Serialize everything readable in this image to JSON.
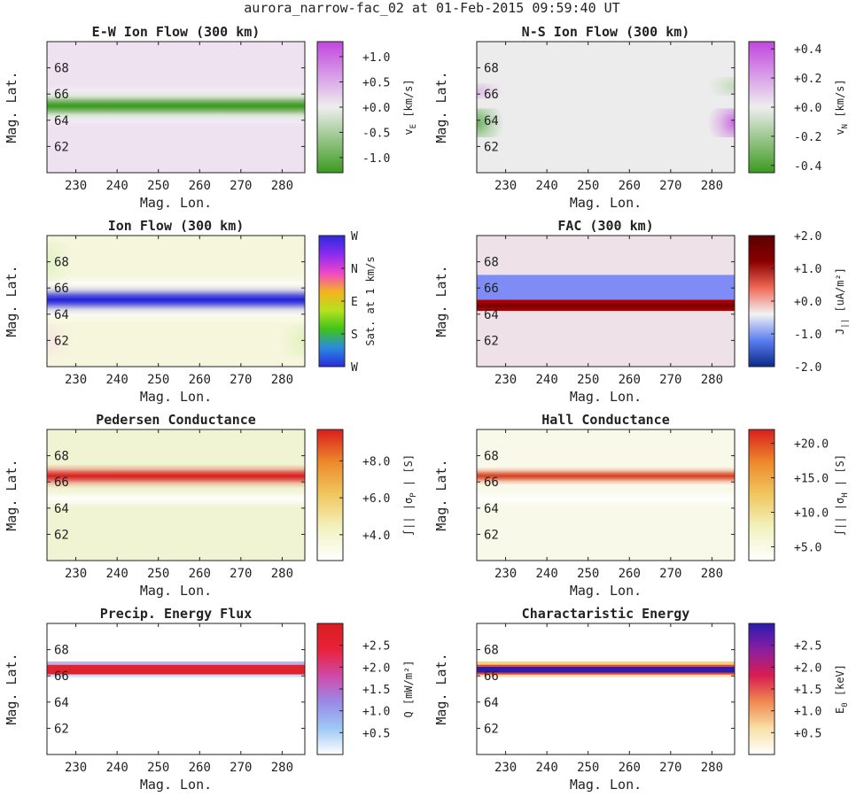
{
  "figure": {
    "title": "aurora_narrow-fac_02 at 01-Feb-2015 09:59:40 UT"
  },
  "colors": {
    "frame": "#222222",
    "green": "#3b9a1e",
    "purple": "#c146de",
    "neutral": "#eeeeee",
    "blue_ion": "#1f1fdc",
    "fac_red": "#7a0000",
    "fac_blue": "#7f8cf5",
    "fac_bg": "#eee2e8",
    "cond_red": "#d81e1e",
    "cond_bg": "#f1f4d2",
    "precip_red": "#e0222e",
    "char_blue": "#2a1cb0"
  },
  "chart_data": [
    {
      "id": "ew",
      "type": "heatmap",
      "title": "E-W Ion Flow (300 km)",
      "xlabel": "",
      "ylabel": "Mag. Lat.",
      "xlim": [
        223,
        285.5
      ],
      "ylim": [
        60,
        70
      ],
      "xticks": [
        "230",
        "240",
        "250",
        "260",
        "270",
        "280"
      ],
      "xtick_values": [
        230,
        240,
        250,
        260,
        270,
        280
      ],
      "yticks": [
        "62",
        "64",
        "66",
        "68"
      ],
      "ytick_values": [
        62,
        64,
        66,
        68
      ],
      "colorbar": {
        "label_main": "v",
        "label_sub": "E",
        "label_unit": "[km/s]",
        "range": [
          -1.3,
          1.3
        ],
        "stops": [
          "#3b9a1e",
          "#eeeeee",
          "#c146de"
        ],
        "ticks": [
          "+1.0",
          "+0.5",
          "+0.0",
          "-0.5",
          "-1.0"
        ],
        "tick_values": [
          1.0,
          0.5,
          0.0,
          -0.5,
          -1.0
        ]
      },
      "field": {
        "background": "#eee2f0",
        "bands": [
          {
            "lat": 65.1,
            "width": 0.55,
            "color": "#3b9a1e",
            "strength": 1.0
          },
          {
            "lat": 66.0,
            "width": 0.35,
            "color": "#ffffff",
            "strength": 0.5
          },
          {
            "lat": 64.2,
            "width": 0.35,
            "color": "#ffffff",
            "strength": 0.5
          }
        ]
      }
    },
    {
      "id": "ns",
      "type": "heatmap",
      "title": "N-S Ion Flow (300 km)",
      "xlabel": "",
      "ylabel": "Mag. Lat.",
      "xlim": [
        223,
        285.5
      ],
      "ylim": [
        60,
        70
      ],
      "xticks": [
        "230",
        "240",
        "250",
        "260",
        "270",
        "280"
      ],
      "xtick_values": [
        230,
        240,
        250,
        260,
        270,
        280
      ],
      "yticks": [
        "62",
        "64",
        "66",
        "68"
      ],
      "ytick_values": [
        62,
        64,
        66,
        68
      ],
      "colorbar": {
        "label_main": "v",
        "label_sub": "N",
        "label_unit": "[km/s]",
        "range": [
          -0.45,
          0.45
        ],
        "stops": [
          "#3b9a1e",
          "#eeeeee",
          "#c146de"
        ],
        "ticks": [
          "+0.4",
          "+0.2",
          "+0.0",
          "-0.2",
          "-0.4"
        ],
        "tick_values": [
          0.4,
          0.2,
          0.0,
          -0.2,
          -0.4
        ]
      },
      "field": {
        "background": "#ececec",
        "bands": [],
        "edges": [
          {
            "lat": 63.8,
            "height": 2.2,
            "side": "left",
            "color": "#5aa84a",
            "strength": 0.9
          },
          {
            "lat": 66.2,
            "height": 1.2,
            "side": "left",
            "color": "#c98ad6",
            "strength": 0.5
          },
          {
            "lat": 63.8,
            "height": 2.2,
            "side": "right",
            "color": "#c146de",
            "strength": 0.8
          },
          {
            "lat": 66.6,
            "height": 1.4,
            "side": "right",
            "color": "#7fbf6a",
            "strength": 0.4
          }
        ]
      }
    },
    {
      "id": "ion",
      "type": "heatmap",
      "title": "Ion Flow (300 km)",
      "xlabel": "",
      "ylabel": "Mag. Lat.",
      "xlim": [
        223,
        285.5
      ],
      "ylim": [
        60,
        70
      ],
      "xticks": [
        "230",
        "240",
        "250",
        "260",
        "270",
        "280"
      ],
      "xtick_values": [
        230,
        240,
        250,
        260,
        270,
        280
      ],
      "yticks": [
        "62",
        "64",
        "66",
        "68"
      ],
      "ytick_values": [
        62,
        64,
        66,
        68
      ],
      "colorbar": {
        "label_main": "Sat. at 1 km/s",
        "label_sub": "",
        "label_unit": "",
        "range": [
          0,
          4
        ],
        "stops": [
          "#2b2bdc",
          "#2a8ae0",
          "#3fc21a",
          "#b5e21e",
          "#f5b21e",
          "#f046c8",
          "#8a2bf0",
          "#2b2bdc"
        ],
        "ticks": [
          "W",
          "N",
          "E",
          "S",
          "W"
        ],
        "tick_values": [
          4,
          3,
          2,
          1,
          0
        ]
      },
      "field": {
        "background": "#f6f6dc",
        "bands": [
          {
            "lat": 65.1,
            "width": 0.55,
            "color": "#1f1fdc",
            "strength": 1.0
          },
          {
            "lat": 66.3,
            "width": 0.4,
            "color": "#ffffff",
            "strength": 0.6
          },
          {
            "lat": 64.0,
            "width": 0.4,
            "color": "#ffffff",
            "strength": 0.6
          }
        ],
        "edges": [
          {
            "lat": 68.0,
            "height": 3.0,
            "side": "left",
            "color": "#d8efb8",
            "strength": 0.7
          },
          {
            "lat": 62.0,
            "height": 2.5,
            "side": "right",
            "color": "#d8efb0",
            "strength": 0.7
          },
          {
            "lat": 62.0,
            "height": 2.5,
            "side": "left",
            "color": "#f6d8ea",
            "strength": 0.5
          }
        ]
      }
    },
    {
      "id": "fac",
      "type": "heatmap",
      "title": "FAC (300 km)",
      "xlabel": "",
      "ylabel": "Mag. Lat.",
      "xlim": [
        223,
        285.5
      ],
      "ylim": [
        60,
        70
      ],
      "xticks": [
        "230",
        "240",
        "250",
        "260",
        "270",
        "280"
      ],
      "xtick_values": [
        230,
        240,
        250,
        260,
        270,
        280
      ],
      "yticks": [
        "62",
        "64",
        "66",
        "68"
      ],
      "ytick_values": [
        62,
        64,
        66,
        68
      ],
      "colorbar": {
        "label_main": "J",
        "label_sub": "||",
        "label_unit": "[uA/m²]",
        "range": [
          -2.0,
          2.0
        ],
        "stops": [
          "#0a2a88",
          "#5a7ef0",
          "#f2f2f2",
          "#f06a58",
          "#8a0000",
          "#5a0000"
        ],
        "ticks": [
          "+2.0",
          "+1.0",
          "+0.0",
          "-1.0",
          "-2.0"
        ],
        "tick_values": [
          2.0,
          1.0,
          0.0,
          -1.0,
          -2.0
        ]
      },
      "field": {
        "background": "#eee2e8",
        "rects": [
          {
            "lat_min": 65.1,
            "lat_max": 67.0,
            "color": "#7f8cf5"
          },
          {
            "lat_min": 64.25,
            "lat_max": 65.1,
            "color": "#b00000"
          }
        ],
        "bands": [
          {
            "lat": 64.65,
            "width": 0.18,
            "color": "#6a0000",
            "strength": 0.8
          }
        ]
      }
    },
    {
      "id": "ped",
      "type": "heatmap",
      "title": "Pedersen Conductance",
      "xlabel": "",
      "ylabel": "Mag. Lat.",
      "xlim": [
        223,
        285.5
      ],
      "ylim": [
        60,
        70
      ],
      "xticks": [
        "230",
        "240",
        "250",
        "260",
        "270",
        "280"
      ],
      "xtick_values": [
        230,
        240,
        250,
        260,
        270,
        280
      ],
      "yticks": [
        "62",
        "64",
        "66",
        "68"
      ],
      "ytick_values": [
        62,
        64,
        66,
        68
      ],
      "colorbar": {
        "label_main": "∫|| |σ",
        "label_sub": "P",
        "label_unit": "| [S]",
        "range": [
          2.6,
          9.7
        ],
        "stops": [
          "#ffffff",
          "#f2f2c0",
          "#f0c860",
          "#ec8a2a",
          "#d81e1e"
        ],
        "ticks": [
          "+8.0",
          "+6.0",
          "+4.0"
        ],
        "tick_values": [
          8.0,
          6.0,
          4.0
        ]
      },
      "field": {
        "background": "#f1f4d2",
        "bands": [
          {
            "lat": 66.45,
            "width": 0.42,
            "color": "#d81e1e",
            "strength": 1.0
          },
          {
            "lat": 64.7,
            "width": 0.35,
            "color": "#ffffff",
            "strength": 0.95
          }
        ]
      }
    },
    {
      "id": "hall",
      "type": "heatmap",
      "title": "Hall Conductance",
      "xlabel": "",
      "ylabel": "Mag. Lat.",
      "xlim": [
        223,
        285.5
      ],
      "ylim": [
        60,
        70
      ],
      "xticks": [
        "230",
        "240",
        "250",
        "260",
        "270",
        "280"
      ],
      "xtick_values": [
        230,
        240,
        250,
        260,
        270,
        280
      ],
      "yticks": [
        "62",
        "64",
        "66",
        "68"
      ],
      "ytick_values": [
        62,
        64,
        66,
        68
      ],
      "colorbar": {
        "label_main": "∫|| |σ",
        "label_sub": "H",
        "label_unit": "| [S]",
        "range": [
          3.0,
          22.0
        ],
        "stops": [
          "#ffffff",
          "#f2f2c0",
          "#f0c860",
          "#ec8a2a",
          "#d81e1e"
        ],
        "ticks": [
          "+20.0",
          "+15.0",
          "+10.0",
          "+5.0"
        ],
        "tick_values": [
          20.0,
          15.0,
          10.0,
          5.0
        ]
      },
      "field": {
        "background": "#f8f9e8",
        "bands": [
          {
            "lat": 66.45,
            "width": 0.32,
            "color": "#d8401e",
            "strength": 1.0
          },
          {
            "lat": 64.7,
            "width": 0.35,
            "color": "#ffffff",
            "strength": 0.9
          }
        ]
      }
    },
    {
      "id": "precip",
      "type": "heatmap",
      "title": "Precip. Energy Flux",
      "xlabel": "Mag. Lon.",
      "ylabel": "Mag. Lat.",
      "xlim": [
        223,
        285.5
      ],
      "ylim": [
        60,
        70
      ],
      "xticks": [
        "230",
        "240",
        "250",
        "260",
        "270",
        "280"
      ],
      "xtick_values": [
        230,
        240,
        250,
        260,
        270,
        280
      ],
      "yticks": [
        "62",
        "64",
        "66",
        "68"
      ],
      "ytick_values": [
        62,
        64,
        66,
        68
      ],
      "colorbar": {
        "label_main": "Q [mW/m²]",
        "label_sub": "",
        "label_unit": "",
        "range": [
          0.0,
          3.0
        ],
        "stops": [
          "#ffffff",
          "#9ec8f5",
          "#9a8ae6",
          "#d04aa8",
          "#e8223a",
          "#d81e1e"
        ],
        "ticks": [
          "+2.5",
          "+2.0",
          "+1.5",
          "+1.0",
          "+0.5"
        ],
        "tick_values": [
          2.5,
          2.0,
          1.5,
          1.0,
          0.5
        ]
      },
      "field": {
        "background": "#ffffff",
        "bands": [],
        "rects": [
          {
            "lat_min": 66.1,
            "lat_max": 66.85,
            "color": "#e0222e"
          },
          {
            "lat_min": 66.85,
            "lat_max": 67.1,
            "color": "#b9b4ee"
          },
          {
            "lat_min": 65.9,
            "lat_max": 66.1,
            "color": "#c8dff6"
          }
        ]
      }
    },
    {
      "id": "char",
      "type": "heatmap",
      "title": "Charactaristic Energy",
      "xlabel": "Mag. Lon.",
      "ylabel": "Mag. Lat.",
      "xlim": [
        223,
        285.5
      ],
      "ylim": [
        60,
        70
      ],
      "xticks": [
        "230",
        "240",
        "250",
        "260",
        "270",
        "280"
      ],
      "xtick_values": [
        230,
        240,
        250,
        260,
        270,
        280
      ],
      "yticks": [
        "62",
        "64",
        "66",
        "68"
      ],
      "ytick_values": [
        62,
        64,
        66,
        68
      ],
      "colorbar": {
        "label_main": "E",
        "label_sub": "0",
        "label_unit": "[keV]",
        "range": [
          0.0,
          3.0
        ],
        "stops": [
          "#ffffff",
          "#f8e0a8",
          "#f08a50",
          "#d81e50",
          "#8a1ea0",
          "#2a1cb0"
        ],
        "ticks": [
          "+2.5",
          "+2.0",
          "+1.5",
          "+1.0",
          "+0.5"
        ],
        "tick_values": [
          2.5,
          2.0,
          1.5,
          1.0,
          0.5
        ]
      },
      "field": {
        "background": "#ffffff",
        "bands": [],
        "rects": [
          {
            "lat_min": 65.9,
            "lat_max": 66.1,
            "color": "#f8e2b4"
          },
          {
            "lat_min": 66.1,
            "lat_max": 66.25,
            "color": "#e8402a"
          },
          {
            "lat_min": 66.25,
            "lat_max": 66.7,
            "color": "#2a1cb0"
          },
          {
            "lat_min": 66.7,
            "lat_max": 66.85,
            "color": "#e8402a"
          },
          {
            "lat_min": 66.85,
            "lat_max": 67.1,
            "color": "#f8d27a"
          }
        ]
      }
    }
  ]
}
